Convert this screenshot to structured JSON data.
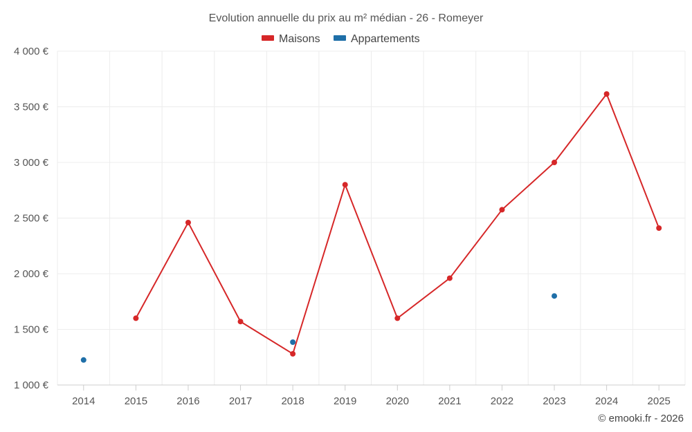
{
  "chart_data": {
    "type": "line",
    "title": "Evolution annuelle du prix au m² médian - 26 - Romeyer",
    "categories": [
      "2014",
      "2015",
      "2016",
      "2017",
      "2018",
      "2019",
      "2020",
      "2021",
      "2022",
      "2023",
      "2024",
      "2025"
    ],
    "ylim": [
      1000,
      4000
    ],
    "yticks": [
      1000,
      1500,
      2000,
      2500,
      3000,
      3500,
      4000
    ],
    "ytick_labels": [
      "1 000 €",
      "1 500 €",
      "2 000 €",
      "2 500 €",
      "3 000 €",
      "3 500 €",
      "4 000 €"
    ],
    "grid": true,
    "legend_position": "top-center",
    "series": [
      {
        "name": "Maisons",
        "color": "#d62728",
        "values": [
          null,
          1600,
          2460,
          1570,
          1280,
          2800,
          1600,
          1960,
          2575,
          3000,
          3615,
          2410
        ]
      },
      {
        "name": "Appartements",
        "color": "#1f6fa8",
        "values": [
          1225,
          null,
          null,
          null,
          1385,
          null,
          null,
          null,
          null,
          1800,
          null,
          null
        ]
      }
    ],
    "credit": "© emooki.fr - 2026"
  }
}
